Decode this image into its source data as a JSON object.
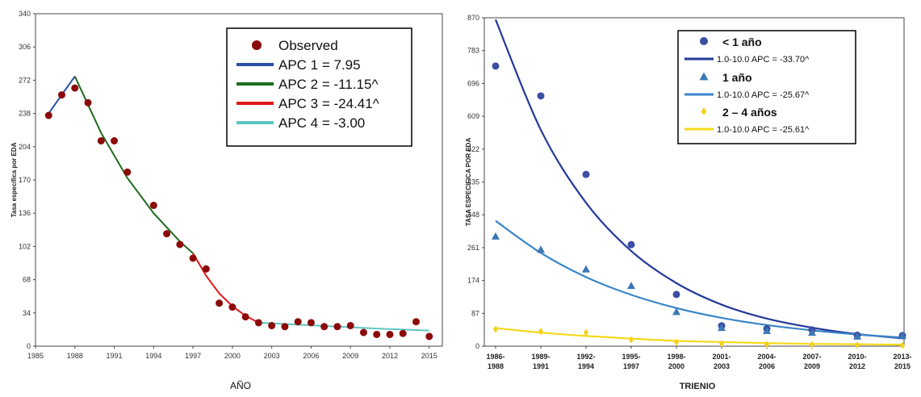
{
  "chart_data": [
    {
      "type": "scatter",
      "xlabel": "AÑO",
      "ylabel": "Tasa específica por EDA",
      "xlim": [
        1985,
        2016
      ],
      "ylim": [
        0,
        340
      ],
      "x_ticks": [
        "1985",
        "1988",
        "1991",
        "1994",
        "1997",
        "2000",
        "2003",
        "2006",
        "2009",
        "2012",
        "2015"
      ],
      "y_ticks": [
        "0",
        "34",
        "68",
        "102",
        "136",
        "170",
        "204",
        "238",
        "272",
        "306",
        "340"
      ],
      "grid": false,
      "legend_position": "top-right",
      "series": [
        {
          "name": "Observed",
          "kind": "points",
          "color": "#8b0a0a",
          "x": [
            1986,
            1987,
            1988,
            1989,
            1990,
            1991,
            1992,
            1994,
            1995,
            1996,
            1997,
            1998,
            1999,
            2000,
            2001,
            2002,
            2003,
            2004,
            2005,
            2006,
            2007,
            2008,
            2009,
            2010,
            2011,
            2012,
            2013,
            2014,
            2015
          ],
          "y": [
            236,
            257,
            264,
            249,
            210,
            210,
            178,
            144,
            115,
            104,
            90,
            79,
            44,
            40,
            30,
            24,
            21,
            20,
            25,
            24,
            20,
            20,
            21,
            14,
            12,
            12,
            13,
            25,
            10
          ]
        },
        {
          "name": "APC 1 =   7.95",
          "kind": "line",
          "color": "#2a4fa6",
          "x": [
            1986,
            1988
          ],
          "y": [
            238,
            276
          ]
        },
        {
          "name": "APC 2 = -11.15^",
          "kind": "line",
          "color": "#1e6b1e",
          "x": [
            1988,
            1990,
            1992,
            1994,
            1996,
            1997
          ],
          "y": [
            276,
            218,
            172,
            136,
            107,
            95
          ]
        },
        {
          "name": "APC 3 = -24.41^",
          "kind": "line",
          "color": "#e01818",
          "x": [
            1997,
            1998,
            1999,
            2000,
            2001,
            2002
          ],
          "y": [
            95,
            72,
            54,
            41,
            31,
            24
          ]
        },
        {
          "name": "APC 4 =  -3.00",
          "kind": "line",
          "color": "#5cc6c0",
          "x": [
            2002,
            2005,
            2008,
            2011,
            2015
          ],
          "y": [
            24,
            22,
            20,
            18,
            16
          ]
        }
      ]
    },
    {
      "type": "scatter",
      "xlabel": "TRIENIO",
      "ylabel": "TASA ESPECIFICA POR EDA",
      "categories": [
        "1986-\n1988",
        "1989-\n1991",
        "1992-\n1994",
        "1995-\n1997",
        "1998-\n2000",
        "2001-\n2003",
        "2004-\n2006",
        "2007-\n2009",
        "2010-\n2012",
        "2013-\n2015"
      ],
      "ylim": [
        0,
        870
      ],
      "y_ticks": [
        "0",
        "87",
        "174",
        "261",
        "348",
        "435",
        "522",
        "609",
        "696",
        "783",
        "870"
      ],
      "grid": false,
      "legend_position": "top-right",
      "series": [
        {
          "name": "< 1 año",
          "kind": "points",
          "marker": "circle",
          "color": "#3b4ea3",
          "values": [
            742,
            663,
            455,
            269,
            137,
            54,
            46,
            43,
            29,
            28
          ]
        },
        {
          "name": "1.0-10.0 APC  = -33.70^",
          "kind": "line",
          "color": "#23389a",
          "values": [
            865,
            573,
            380,
            252,
            167,
            110,
            73,
            49,
            32,
            21
          ]
        },
        {
          "name": "1 año",
          "kind": "points",
          "marker": "triangle",
          "color": "#3a78b6",
          "values": [
            291,
            256,
            204,
            160,
            91,
            49,
            41,
            36,
            26,
            27
          ]
        },
        {
          "name": "1.0-10.0 APC  = -25.67^",
          "kind": "line",
          "color": "#3a86c6",
          "values": [
            332,
            247,
            183,
            136,
            101,
            75,
            56,
            42,
            31,
            23
          ]
        },
        {
          "name": "2 – 4 años",
          "kind": "points",
          "marker": "diamond",
          "color": "#f2d21e",
          "values": [
            45,
            39,
            36,
            17,
            11,
            7,
            5,
            4,
            3,
            2
          ]
        },
        {
          "name": "1.0-10.0 APC  = -25.61^",
          "kind": "line",
          "color": "#f5d91c",
          "values": [
            48,
            36,
            27,
            20,
            14,
            11,
            8,
            6,
            5,
            4
          ]
        }
      ]
    }
  ]
}
